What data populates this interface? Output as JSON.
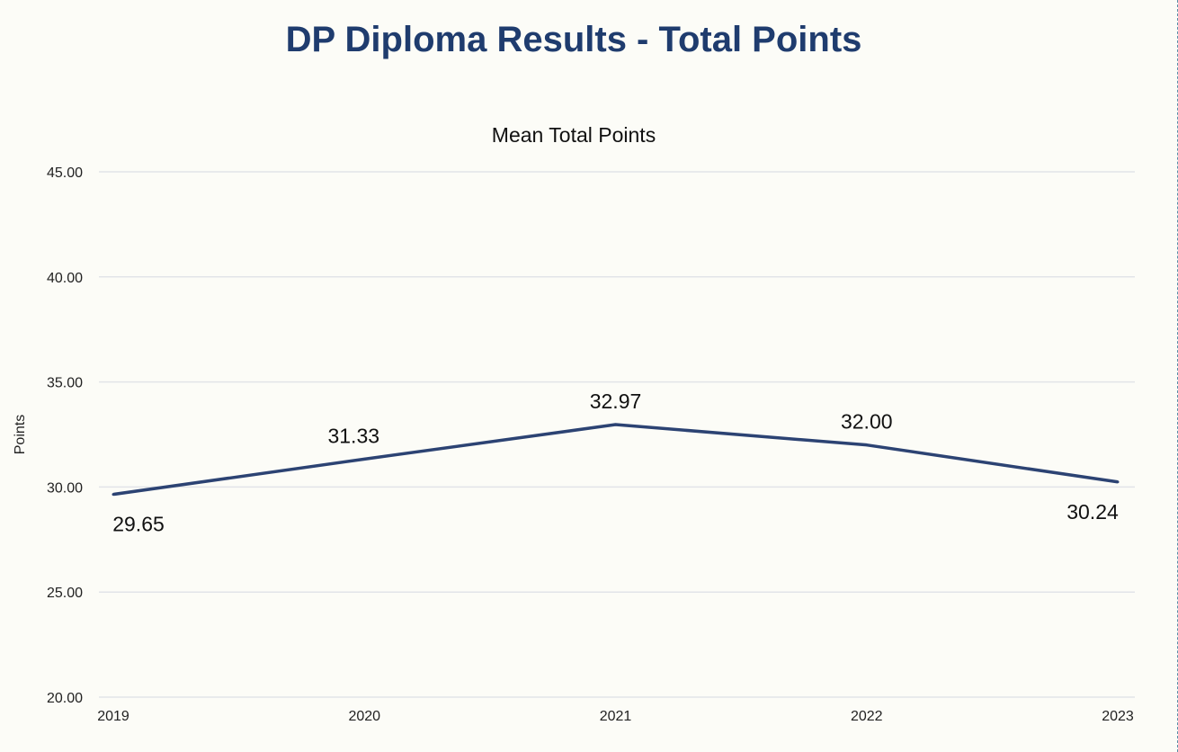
{
  "page": {
    "title": "DP Diploma Results - Total Points"
  },
  "colors": {
    "title": "#1f3c6e",
    "line": "#2c4373",
    "grid": "#e2e4e8",
    "background": "#fcfcf7"
  },
  "chart_data": {
    "type": "line",
    "title": "Mean Total Points",
    "xlabel": "",
    "ylabel": "Points",
    "categories": [
      "2019",
      "2020",
      "2021",
      "2022",
      "2023"
    ],
    "series": [
      {
        "values": [
          29.65,
          31.33,
          32.97,
          32.0,
          30.24
        ]
      }
    ],
    "data_labels": [
      "29.65",
      "31.33",
      "32.97",
      "32.00",
      "30.24"
    ],
    "ylim": [
      20,
      45
    ],
    "yticks": [
      "20.00",
      "25.00",
      "30.00",
      "35.00",
      "40.00",
      "45.00"
    ],
    "grid": true,
    "legend": "none"
  }
}
